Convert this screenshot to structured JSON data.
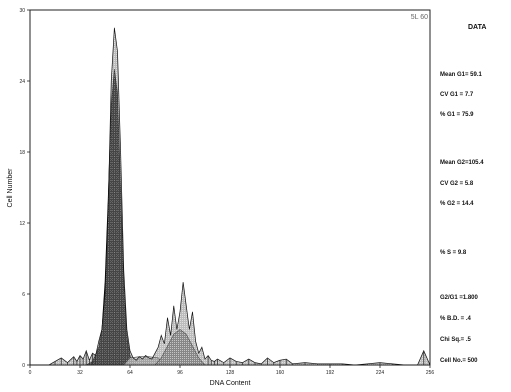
{
  "chart_data": {
    "type": "area",
    "title": "",
    "corner_label": "5L 60",
    "xlabel": "DNA Content",
    "ylabel": "Cell Number",
    "xlim": [
      0,
      256
    ],
    "ylim": [
      0,
      30
    ],
    "x_ticks": [
      {
        "value": 0,
        "label": "0"
      },
      {
        "value": 32,
        "label": "32"
      },
      {
        "value": 64,
        "label": "64"
      },
      {
        "value": 96,
        "label": "96"
      },
      {
        "value": 128,
        "label": "128"
      },
      {
        "value": 160,
        "label": "160"
      },
      {
        "value": 192,
        "label": "192"
      },
      {
        "value": 224,
        "label": "224"
      },
      {
        "value": 256,
        "label": "256"
      }
    ],
    "y_ticks": [
      {
        "value": 0,
        "label": "0"
      },
      {
        "value": 6,
        "label": "6"
      },
      {
        "value": 12,
        "label": "12"
      },
      {
        "value": 18,
        "label": "18"
      },
      {
        "value": 24,
        "label": "24"
      },
      {
        "value": 30,
        "label": "30"
      }
    ],
    "grid": false,
    "histogram": {
      "x": [
        0,
        4,
        8,
        12,
        16,
        20,
        24,
        28,
        30,
        32,
        34,
        36,
        38,
        40,
        42,
        44,
        46,
        48,
        50,
        52,
        54,
        56,
        58,
        60,
        62,
        64,
        66,
        68,
        70,
        72,
        74,
        76,
        78,
        80,
        82,
        84,
        86,
        88,
        90,
        92,
        94,
        96,
        98,
        100,
        102,
        104,
        106,
        108,
        110,
        112,
        114,
        116,
        118,
        120,
        124,
        128,
        132,
        136,
        140,
        144,
        148,
        152,
        156,
        160,
        164,
        168,
        176,
        184,
        192,
        200,
        208,
        216,
        224,
        232,
        240,
        248,
        252,
        256
      ],
      "y": [
        0,
        0,
        0,
        0,
        0.3,
        0.6,
        0.2,
        0.7,
        0.3,
        0.8,
        0.5,
        1.2,
        0.4,
        1.0,
        0.8,
        2.0,
        3.0,
        6.0,
        13.0,
        24.0,
        28.5,
        26.5,
        18.0,
        8.0,
        3.0,
        1.2,
        0.6,
        0.4,
        0.7,
        0.5,
        0.8,
        0.6,
        0.5,
        1.0,
        1.5,
        2.5,
        1.8,
        4.0,
        2.5,
        5.0,
        3.0,
        4.5,
        7.0,
        5.0,
        3.0,
        4.5,
        2.0,
        1.0,
        1.5,
        0.5,
        0.8,
        0.4,
        0.3,
        0.5,
        0.2,
        0.6,
        0.3,
        0.2,
        0.5,
        0.2,
        0.1,
        0.6,
        0.2,
        0.4,
        0.5,
        0.1,
        0.2,
        0.1,
        0.1,
        0.1,
        0.0,
        0.1,
        0.2,
        0.1,
        0.0,
        0.0,
        1.2,
        0.0
      ]
    },
    "fits": [
      {
        "name": "G1",
        "x": [
          36,
          40,
          44,
          46,
          48,
          50,
          52,
          54,
          56,
          58,
          60,
          62,
          64,
          66,
          68
        ],
        "y": [
          0,
          0.3,
          1.5,
          3.0,
          7.0,
          14.0,
          22.0,
          25.0,
          23.0,
          15.0,
          7.0,
          2.5,
          0.8,
          0.2,
          0
        ]
      },
      {
        "name": "S",
        "x": [
          60,
          64,
          70,
          76,
          82,
          86
        ],
        "y": [
          0,
          0.6,
          0.7,
          0.7,
          0.6,
          0
        ]
      },
      {
        "name": "G2",
        "x": [
          80,
          84,
          88,
          92,
          96,
          100,
          104,
          108,
          112
        ],
        "y": [
          0,
          0.6,
          1.6,
          2.6,
          3.0,
          2.6,
          1.6,
          0.6,
          0
        ]
      }
    ]
  },
  "stats_panel": {
    "title": "DATA",
    "lines": [
      "Mean G1= 59.1",
      "CV G1 = 7.7",
      "% G1 = 75.9",
      "Mean G2=105.4",
      "CV G2 = 5.8",
      "% G2 = 14.4",
      "% S = 9.8",
      "G2/G1 =1.800",
      "% B.D. = .4",
      "Chi Sq.= .5",
      "Cell No.= 500"
    ]
  }
}
